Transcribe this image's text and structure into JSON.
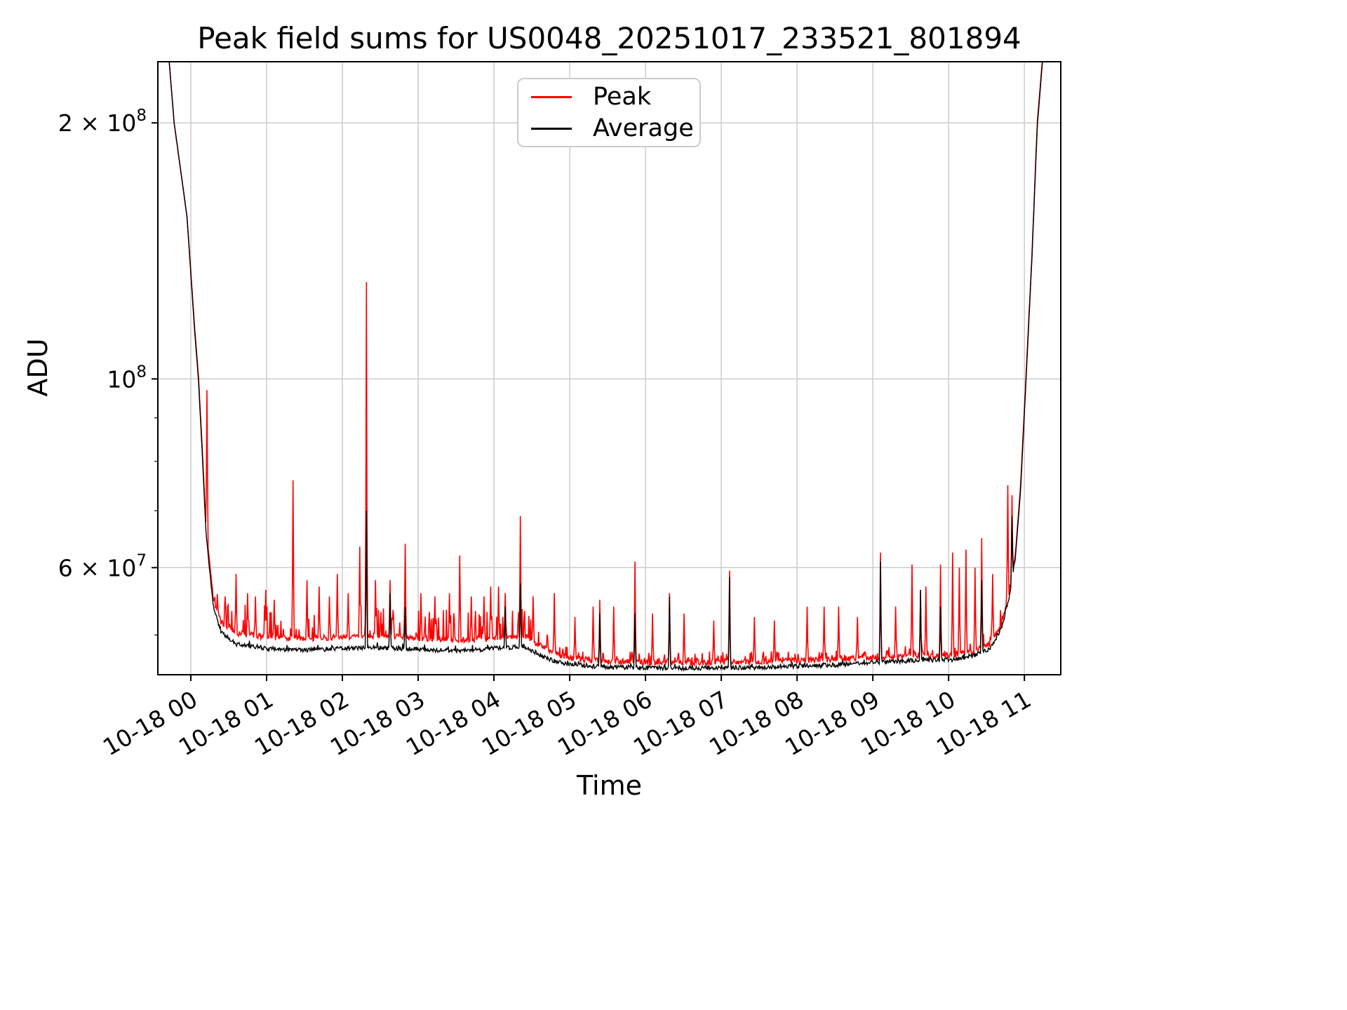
{
  "chart_data": {
    "type": "line",
    "title": "Peak field sums for US0048_20251017_233521_801894",
    "xlabel": "Time",
    "ylabel": "ADU",
    "yscale": "log",
    "ylim": [
      44900000,
      236000000
    ],
    "xlim_hours": [
      -0.435,
      11.48
    ],
    "grid": true,
    "grid_color": "#cccccc",
    "xticks": [
      {
        "hour": 0,
        "label": "10-18 00"
      },
      {
        "hour": 1,
        "label": "10-18 01"
      },
      {
        "hour": 2,
        "label": "10-18 02"
      },
      {
        "hour": 3,
        "label": "10-18 03"
      },
      {
        "hour": 4,
        "label": "10-18 04"
      },
      {
        "hour": 5,
        "label": "10-18 05"
      },
      {
        "hour": 6,
        "label": "10-18 06"
      },
      {
        "hour": 7,
        "label": "10-18 07"
      },
      {
        "hour": 8,
        "label": "10-18 08"
      },
      {
        "hour": 9,
        "label": "10-18 09"
      },
      {
        "hour": 10,
        "label": "10-18 10"
      },
      {
        "hour": 11,
        "label": "10-18 11"
      }
    ],
    "yticks": [
      {
        "value": 60000000,
        "mantissa": "6 × 10",
        "exponent": "7"
      },
      {
        "value": 100000000,
        "mantissa": "10",
        "exponent": "8"
      },
      {
        "value": 200000000,
        "mantissa": "2 × 10",
        "exponent": "8"
      }
    ],
    "yticks_minor": [
      50000000,
      70000000,
      80000000,
      90000000
    ],
    "legend": {
      "position": "top-center",
      "entries": [
        {
          "label": "Peak",
          "color": "#ff0000"
        },
        {
          "label": "Average",
          "color": "#000000"
        }
      ]
    },
    "sampling": {
      "step_hours": 0.008,
      "seed": 20251018
    },
    "series": [
      {
        "name": "Peak",
        "color": "#ff0000",
        "line_width": 1.6,
        "baseline": [
          [
            -0.435,
            260000000
          ],
          [
            -0.3,
            245000000
          ],
          [
            -0.22,
            200000000
          ],
          [
            -0.05,
            155000000
          ],
          [
            0.05,
            115000000
          ],
          [
            0.1,
            101000000
          ],
          [
            0.15,
            83000000
          ],
          [
            0.2,
            67000000
          ],
          [
            0.3,
            54800000
          ],
          [
            0.4,
            51800000
          ],
          [
            0.6,
            50300000
          ],
          [
            1.0,
            49700000
          ],
          [
            1.5,
            49500000
          ],
          [
            2.0,
            49700000
          ],
          [
            2.5,
            49900000
          ],
          [
            3.0,
            49600000
          ],
          [
            3.5,
            49300000
          ],
          [
            4.0,
            49600000
          ],
          [
            4.4,
            49900000
          ],
          [
            4.6,
            48600000
          ],
          [
            4.8,
            47600000
          ],
          [
            5.0,
            47000000
          ],
          [
            5.5,
            46500000
          ],
          [
            6.5,
            46400000
          ],
          [
            7.5,
            46500000
          ],
          [
            8.5,
            46800000
          ],
          [
            9.0,
            47000000
          ],
          [
            9.6,
            47300000
          ],
          [
            10.0,
            47300000
          ],
          [
            10.3,
            47800000
          ],
          [
            10.55,
            48800000
          ],
          [
            10.7,
            51500000
          ],
          [
            10.8,
            56000000
          ],
          [
            10.88,
            62000000
          ],
          [
            10.95,
            75000000
          ],
          [
            11.02,
            100000000
          ],
          [
            11.1,
            140000000
          ],
          [
            11.17,
            200000000
          ],
          [
            11.25,
            245000000
          ],
          [
            11.48,
            260000000
          ]
        ],
        "spikes": [
          [
            0.21,
            97000000
          ],
          [
            0.45,
            55500000
          ],
          [
            0.6,
            59000000
          ],
          [
            0.75,
            56000000
          ],
          [
            0.85,
            55500000
          ],
          [
            0.99,
            56500000
          ],
          [
            1.1,
            55000000
          ],
          [
            1.35,
            76000000
          ],
          [
            1.53,
            58000000
          ],
          [
            1.69,
            57000000
          ],
          [
            1.83,
            55500000
          ],
          [
            1.93,
            59000000
          ],
          [
            2.08,
            56000000
          ],
          [
            2.23,
            63500000
          ],
          [
            2.32,
            130000000
          ],
          [
            2.44,
            58000000
          ],
          [
            2.63,
            58000000
          ],
          [
            2.83,
            64000000
          ],
          [
            3.04,
            56000000
          ],
          [
            3.22,
            55500000
          ],
          [
            3.41,
            56000000
          ],
          [
            3.55,
            62000000
          ],
          [
            3.7,
            55500000
          ],
          [
            3.87,
            55500000
          ],
          [
            3.96,
            57000000
          ],
          [
            4.06,
            57000000
          ],
          [
            4.15,
            56000000
          ],
          [
            4.35,
            69000000
          ],
          [
            4.52,
            55500000
          ],
          [
            4.8,
            56000000
          ],
          [
            5.07,
            52500000
          ],
          [
            5.31,
            54000000
          ],
          [
            5.4,
            55000000
          ],
          [
            5.58,
            54000000
          ],
          [
            5.86,
            61000000
          ],
          [
            6.09,
            53000000
          ],
          [
            6.32,
            56000000
          ],
          [
            6.51,
            53000000
          ],
          [
            6.9,
            52000000
          ],
          [
            7.11,
            59500000
          ],
          [
            7.44,
            52500000
          ],
          [
            7.7,
            52000000
          ],
          [
            8.13,
            54000000
          ],
          [
            8.36,
            54000000
          ],
          [
            8.55,
            54000000
          ],
          [
            8.8,
            52500000
          ],
          [
            9.1,
            62500000
          ],
          [
            9.3,
            54000000
          ],
          [
            9.52,
            60500000
          ],
          [
            9.7,
            57000000
          ],
          [
            9.89,
            60500000
          ],
          [
            10.05,
            62500000
          ],
          [
            10.14,
            60000000
          ],
          [
            10.23,
            63000000
          ],
          [
            10.35,
            60000000
          ],
          [
            10.44,
            65000000
          ],
          [
            10.58,
            59000000
          ],
          [
            10.78,
            75000000
          ],
          [
            10.84,
            73000000
          ]
        ],
        "noise": {
          "amp": 0.008,
          "spike_prob": 0.18,
          "texture": [
            [
              -0.435,
              0
            ],
            [
              0.25,
              0
            ],
            [
              0.35,
              0.09
            ],
            [
              4.6,
              0.09
            ],
            [
              4.9,
              0.03
            ],
            [
              10.3,
              0.03
            ],
            [
              10.6,
              0.05
            ],
            [
              11.48,
              0
            ]
          ]
        }
      },
      {
        "name": "Average",
        "color": "#000000",
        "line_width": 1.4,
        "baseline": [
          [
            -0.435,
            260000000
          ],
          [
            -0.3,
            245000000
          ],
          [
            -0.22,
            200000000
          ],
          [
            -0.05,
            155000000
          ],
          [
            0.05,
            114000000
          ],
          [
            0.1,
            100000000
          ],
          [
            0.15,
            82000000
          ],
          [
            0.2,
            66000000
          ],
          [
            0.3,
            53800000
          ],
          [
            0.4,
            50300000
          ],
          [
            0.6,
            48800000
          ],
          [
            1.0,
            48200000
          ],
          [
            1.5,
            48000000
          ],
          [
            2.0,
            48200000
          ],
          [
            2.5,
            48300000
          ],
          [
            3.0,
            48100000
          ],
          [
            3.5,
            47900000
          ],
          [
            4.0,
            48200000
          ],
          [
            4.4,
            48500000
          ],
          [
            4.6,
            47300000
          ],
          [
            4.8,
            46600000
          ],
          [
            5.0,
            46200000
          ],
          [
            5.5,
            45800000
          ],
          [
            6.5,
            45700000
          ],
          [
            7.5,
            45800000
          ],
          [
            8.5,
            46100000
          ],
          [
            9.0,
            46400000
          ],
          [
            9.6,
            46700000
          ],
          [
            10.0,
            46700000
          ],
          [
            10.3,
            47200000
          ],
          [
            10.55,
            48200000
          ],
          [
            10.7,
            51000000
          ],
          [
            10.8,
            55500000
          ],
          [
            10.88,
            61500000
          ],
          [
            10.95,
            74000000
          ],
          [
            11.02,
            99000000
          ],
          [
            11.1,
            139000000
          ],
          [
            11.17,
            198000000
          ],
          [
            11.25,
            243000000
          ],
          [
            11.48,
            258000000
          ]
        ],
        "spikes": [
          [
            2.32,
            70000000
          ],
          [
            2.63,
            56000000
          ],
          [
            2.83,
            54000000
          ],
          [
            4.15,
            54000000
          ],
          [
            4.35,
            57500000
          ],
          [
            5.4,
            53000000
          ],
          [
            5.86,
            53000000
          ],
          [
            6.32,
            55500000
          ],
          [
            7.11,
            58500000
          ],
          [
            9.1,
            61000000
          ],
          [
            9.63,
            56500000
          ],
          [
            9.89,
            54000000
          ],
          [
            10.44,
            58000000
          ],
          [
            10.84,
            69000000
          ]
        ],
        "noise": {
          "amp": 0.006,
          "spike_prob": 0.06,
          "texture": [
            [
              -0.435,
              0
            ],
            [
              0.35,
              0.015
            ],
            [
              4.6,
              0.015
            ],
            [
              4.9,
              0.012
            ],
            [
              11.48,
              0.012
            ]
          ]
        }
      }
    ]
  }
}
